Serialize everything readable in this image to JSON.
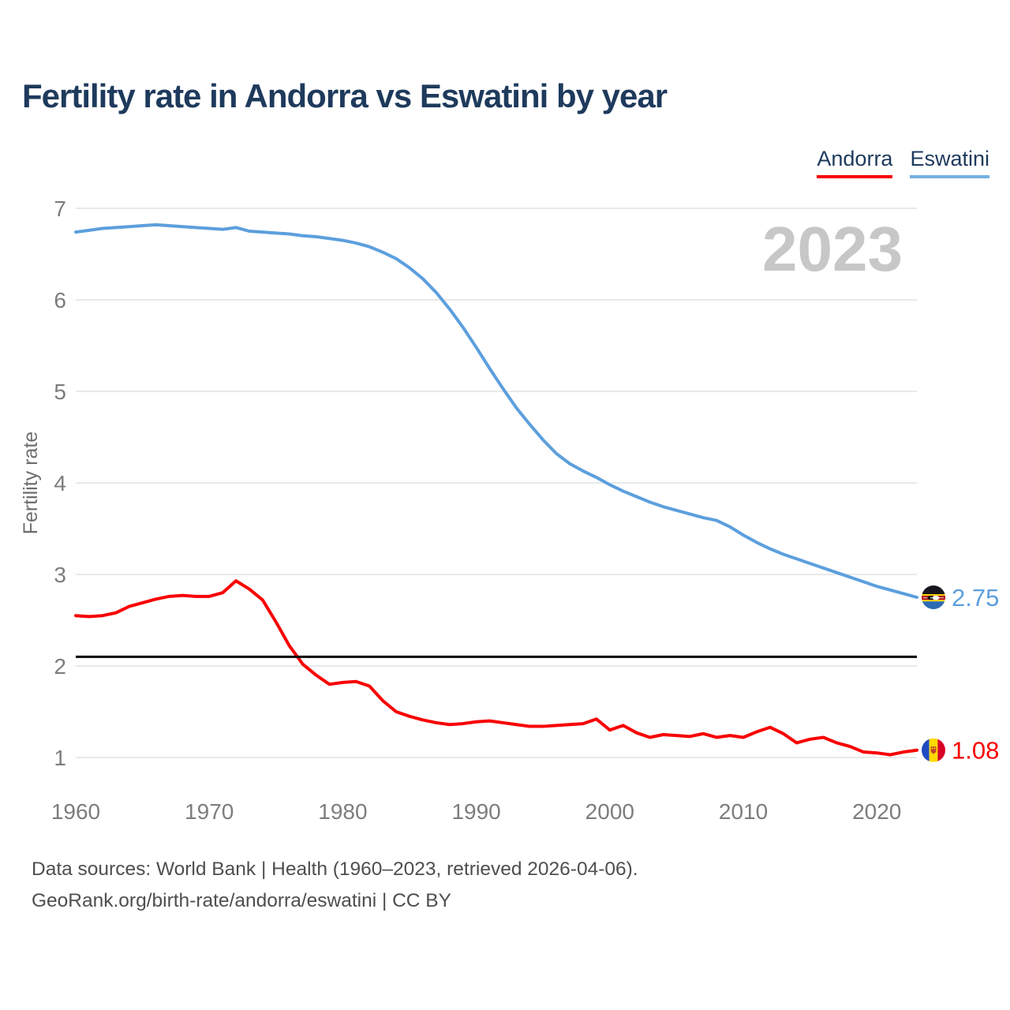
{
  "page": {
    "title": "Fertility rate in Andorra vs Eswatini by year",
    "watermark": "2023",
    "footer": {
      "line1": "Data sources: World Bank | Health (1960–2023, retrieved 2026-04-06).",
      "line2": "GeoRank.org/birth-rate/andorra/eswatini | CC BY"
    }
  },
  "legend": {
    "items": [
      {
        "label": "Andorra",
        "color": "#f80000"
      },
      {
        "label": "Eswatini",
        "color": "#74b0e2"
      }
    ]
  },
  "colors": {
    "title_navy": "#1e3a5c",
    "andorra_red": "#f80000",
    "eswatini_blue": "#5c9fdd",
    "reference_line": "#000000",
    "gridline": "#e9e9e9",
    "tick_label": "#7d7d7d",
    "watermark_gray": "#c7c7c7"
  },
  "icons": {
    "andorra_flag": "andorra-flag-icon",
    "eswatini_flag": "eswatini-flag-icon"
  },
  "chart_data": {
    "type": "line",
    "title": "Fertility rate in Andorra vs Eswatini by year",
    "xlabel": "",
    "ylabel": "Fertility rate",
    "grid": "horizontal",
    "legend_position": "top-right",
    "watermark": "2023",
    "xlim": [
      1960,
      2023
    ],
    "ylim": [
      1,
      7
    ],
    "x_ticks": [
      1960,
      1970,
      1980,
      1990,
      2000,
      2010,
      2020
    ],
    "y_ticks": [
      1,
      2,
      3,
      4,
      5,
      6,
      7
    ],
    "reference_line": {
      "value": 2.1,
      "color": "#000000"
    },
    "x": [
      1960,
      1961,
      1962,
      1963,
      1964,
      1965,
      1966,
      1967,
      1968,
      1969,
      1970,
      1971,
      1972,
      1973,
      1974,
      1975,
      1976,
      1977,
      1978,
      1979,
      1980,
      1981,
      1982,
      1983,
      1984,
      1985,
      1986,
      1987,
      1988,
      1989,
      1990,
      1991,
      1992,
      1993,
      1994,
      1995,
      1996,
      1997,
      1998,
      1999,
      2000,
      2001,
      2002,
      2003,
      2004,
      2005,
      2006,
      2007,
      2008,
      2009,
      2010,
      2011,
      2012,
      2013,
      2014,
      2015,
      2016,
      2017,
      2018,
      2019,
      2020,
      2021,
      2022,
      2023
    ],
    "series": [
      {
        "name": "Andorra",
        "color": "#f80000",
        "end_value": 1.08,
        "end_label": "1.08",
        "flag_icon": "andorra-flag-icon",
        "values": [
          2.55,
          2.54,
          2.55,
          2.58,
          2.65,
          2.69,
          2.73,
          2.76,
          2.77,
          2.76,
          2.76,
          2.8,
          2.93,
          2.84,
          2.72,
          2.48,
          2.22,
          2.02,
          1.9,
          1.8,
          1.82,
          1.83,
          1.78,
          1.62,
          1.5,
          1.45,
          1.41,
          1.38,
          1.36,
          1.37,
          1.39,
          1.4,
          1.38,
          1.36,
          1.34,
          1.34,
          1.35,
          1.36,
          1.37,
          1.42,
          1.3,
          1.35,
          1.27,
          1.22,
          1.25,
          1.24,
          1.23,
          1.26,
          1.22,
          1.24,
          1.22,
          1.28,
          1.33,
          1.26,
          1.16,
          1.2,
          1.22,
          1.16,
          1.12,
          1.06,
          1.05,
          1.03,
          1.06,
          1.08
        ]
      },
      {
        "name": "Eswatini",
        "color": "#5c9fdd",
        "end_value": 2.75,
        "end_label": "2.75",
        "flag_icon": "eswatini-flag-icon",
        "values": [
          6.74,
          6.76,
          6.78,
          6.79,
          6.8,
          6.81,
          6.82,
          6.81,
          6.8,
          6.79,
          6.78,
          6.77,
          6.79,
          6.75,
          6.74,
          6.73,
          6.72,
          6.7,
          6.69,
          6.67,
          6.65,
          6.62,
          6.58,
          6.52,
          6.45,
          6.35,
          6.23,
          6.08,
          5.9,
          5.7,
          5.48,
          5.25,
          5.03,
          4.82,
          4.64,
          4.47,
          4.32,
          4.21,
          4.13,
          4.06,
          3.98,
          3.91,
          3.85,
          3.79,
          3.74,
          3.7,
          3.66,
          3.62,
          3.59,
          3.52,
          3.43,
          3.35,
          3.28,
          3.22,
          3.17,
          3.12,
          3.07,
          3.02,
          2.97,
          2.92,
          2.87,
          2.83,
          2.79,
          2.75
        ]
      }
    ]
  }
}
